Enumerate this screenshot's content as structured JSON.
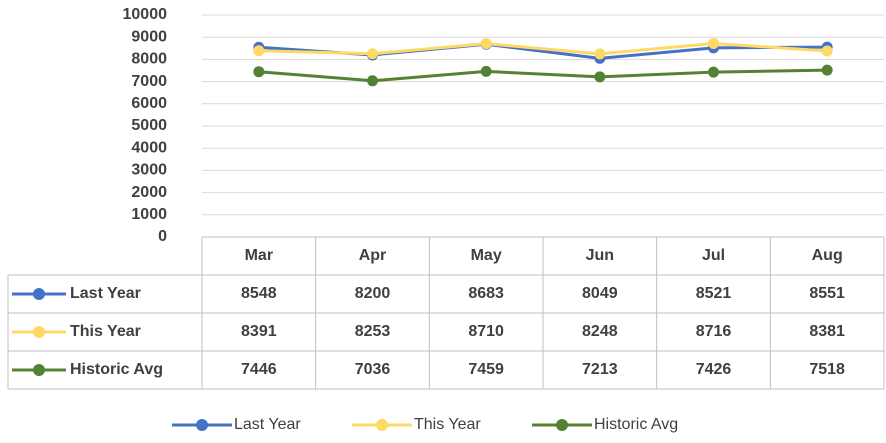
{
  "chart_data": {
    "type": "line",
    "categories": [
      "Mar",
      "Apr",
      "May",
      "Jun",
      "Jul",
      "Aug"
    ],
    "series": [
      {
        "name": "Last Year",
        "color": "#4472c4",
        "values": [
          8548,
          8200,
          8683,
          8049,
          8521,
          8551
        ]
      },
      {
        "name": "This Year",
        "color": "#ffd966",
        "values": [
          8391,
          8253,
          8710,
          8248,
          8716,
          8381
        ]
      },
      {
        "name": "Historic Avg",
        "color": "#548235",
        "values": [
          7446,
          7036,
          7459,
          7213,
          7426,
          7518
        ]
      }
    ],
    "ylim": [
      0,
      10000
    ],
    "yticks": [
      0,
      1000,
      2000,
      3000,
      4000,
      5000,
      6000,
      7000,
      8000,
      9000,
      10000
    ],
    "grid": true,
    "legend": "bottom",
    "data_table": true
  }
}
